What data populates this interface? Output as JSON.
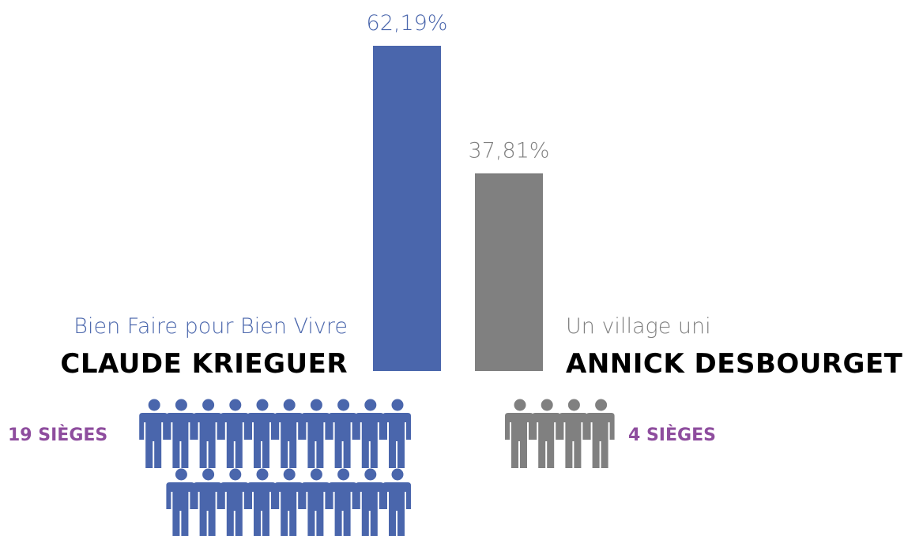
{
  "chart_data": {
    "type": "bar",
    "categories": [
      "CLAUDE KRIEGUER",
      "ANNICK DESBOURGET"
    ],
    "lists": [
      "Bien Faire pour Bien Vivre",
      "Un village uni"
    ],
    "values": [
      62.19,
      37.81
    ],
    "value_labels": [
      "62,19%",
      "37,81%"
    ],
    "colors": [
      "#4a66ac",
      "#808080"
    ],
    "seats": [
      19,
      4
    ],
    "seat_labels": [
      "19 SIÈGES",
      "4 SIÈGES"
    ],
    "seat_label_color": "#8e4d9e",
    "ylim": [
      0,
      100
    ]
  }
}
